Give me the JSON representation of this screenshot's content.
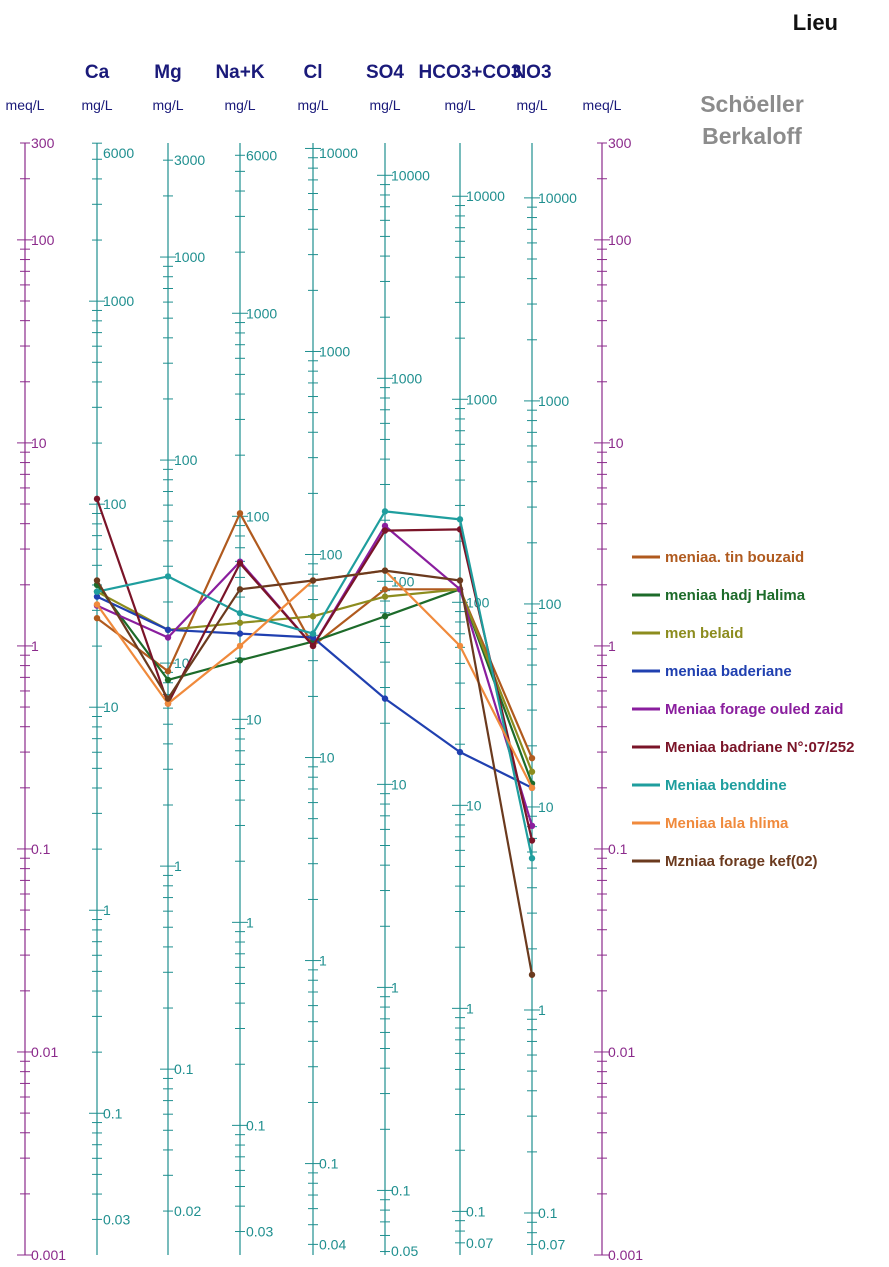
{
  "corner_title": "Lieu",
  "diagram_type_lines": [
    "Schöeller",
    "Berkaloff"
  ],
  "colors": {
    "axis_purple": "#8b2a8b",
    "axis_teal": "#1f8f8f",
    "header_navy": "#1a1a7a",
    "diagram_type_gray": "#8c8c8c"
  },
  "chart_data": {
    "type": "line",
    "scale": "log",
    "x": [
      "Ca",
      "Mg",
      "Na+K",
      "Cl",
      "SO4",
      "HCO3+CO3",
      "NO3"
    ],
    "meq_axis": {
      "unit": "meq/L",
      "ylim": [
        0.001,
        300
      ],
      "tick_labels": [
        "300",
        "100",
        "10",
        "1",
        "0.1",
        "0.01",
        "0.001"
      ],
      "tick_values": [
        300,
        100,
        10,
        1,
        0.1,
        0.01,
        0.001
      ]
    },
    "ion_axes": [
      {
        "name": "Ca",
        "unit": "mg/L",
        "meq_per_mgl": 0.0499,
        "tick_labels": [
          "6000",
          "1000",
          "100",
          "10",
          "1",
          "0.1",
          "0.03"
        ],
        "tick_values": [
          6000,
          1000,
          100,
          10,
          1,
          0.1,
          0.03
        ]
      },
      {
        "name": "Mg",
        "unit": "mg/L",
        "meq_per_mgl": 0.0823,
        "tick_labels": [
          "3000",
          "1000",
          "100",
          "10",
          "1",
          "0.1",
          "0.02"
        ],
        "tick_values": [
          3000,
          1000,
          100,
          10,
          1,
          0.1,
          0.02
        ]
      },
      {
        "name": "Na+K",
        "unit": "mg/L",
        "meq_per_mgl": 0.0435,
        "tick_labels": [
          "6000",
          "1000",
          "100",
          "10",
          "1",
          "0.1",
          "0.03"
        ],
        "tick_values": [
          6000,
          1000,
          100,
          10,
          1,
          0.1,
          0.03
        ]
      },
      {
        "name": "Cl",
        "unit": "mg/L",
        "meq_per_mgl": 0.0282,
        "tick_labels": [
          "10000",
          "1000",
          "100",
          "10",
          "1",
          "0.1",
          "0.04"
        ],
        "tick_values": [
          10000,
          1000,
          100,
          10,
          1,
          0.1,
          0.04
        ]
      },
      {
        "name": "SO4",
        "unit": "mg/L",
        "meq_per_mgl": 0.0208,
        "tick_labels": [
          "10000",
          "1000",
          "100",
          "10",
          "1",
          "0.1",
          "0.05"
        ],
        "tick_values": [
          10000,
          1000,
          100,
          10,
          1,
          0.1,
          0.05
        ]
      },
      {
        "name": "HCO3+CO3",
        "unit": "mg/L",
        "meq_per_mgl": 0.0164,
        "tick_labels": [
          "10000",
          "1000",
          "100",
          "10",
          "1",
          "0.1",
          "0.07"
        ],
        "tick_values": [
          10000,
          1000,
          100,
          10,
          1,
          0.1,
          0.07
        ]
      },
      {
        "name": "NO3",
        "unit": "mg/L",
        "meq_per_mgl": 0.0161,
        "tick_labels": [
          "10000",
          "1000",
          "100",
          "10",
          "1",
          "0.1",
          "0.07"
        ],
        "tick_values": [
          10000,
          1000,
          100,
          10,
          1,
          0.1,
          0.07
        ]
      }
    ],
    "series": [
      {
        "name": "meniaa. tin bouzaid",
        "color": "#b05a1e",
        "values": [
          1.37,
          0.75,
          4.5,
          1.0,
          1.9,
          1.9,
          0.28
        ]
      },
      {
        "name": "meniaa hadj Halima",
        "color": "#1d6b2a",
        "values": [
          2.0,
          0.68,
          0.85,
          1.05,
          1.4,
          1.9,
          0.21
        ]
      },
      {
        "name": "men belaid",
        "color": "#8c8c1e",
        "values": [
          1.85,
          1.2,
          1.3,
          1.4,
          1.75,
          1.9,
          0.24
        ]
      },
      {
        "name": "meniaa baderiane",
        "color": "#2040b0",
        "values": [
          1.75,
          1.2,
          1.15,
          1.1,
          0.55,
          0.3,
          0.2
        ]
      },
      {
        "name": "Meniaa forage ouled zaid",
        "color": "#8a1e9e",
        "values": [
          1.58,
          1.1,
          2.6,
          1.0,
          3.9,
          1.9,
          0.13
        ]
      },
      {
        "name": "Meniaa badriane N°:07/252",
        "color": "#7a1428",
        "values": [
          5.3,
          0.52,
          2.55,
          1.0,
          3.7,
          3.75,
          0.11
        ]
      },
      {
        "name": "Meniaa benddine",
        "color": "#1f9e9e",
        "values": [
          1.85,
          2.2,
          1.45,
          1.15,
          4.6,
          4.2,
          0.09
        ]
      },
      {
        "name": "Meniaa lala hlima",
        "color": "#f08a3c",
        "values": [
          1.6,
          0.52,
          1.0,
          2.1,
          2.35,
          1.0,
          0.2
        ]
      },
      {
        "name": "Mzniaa forage kef(02)",
        "color": "#6b3a1e",
        "values": [
          2.1,
          0.55,
          1.9,
          2.1,
          2.35,
          2.1,
          0.024
        ]
      }
    ]
  }
}
